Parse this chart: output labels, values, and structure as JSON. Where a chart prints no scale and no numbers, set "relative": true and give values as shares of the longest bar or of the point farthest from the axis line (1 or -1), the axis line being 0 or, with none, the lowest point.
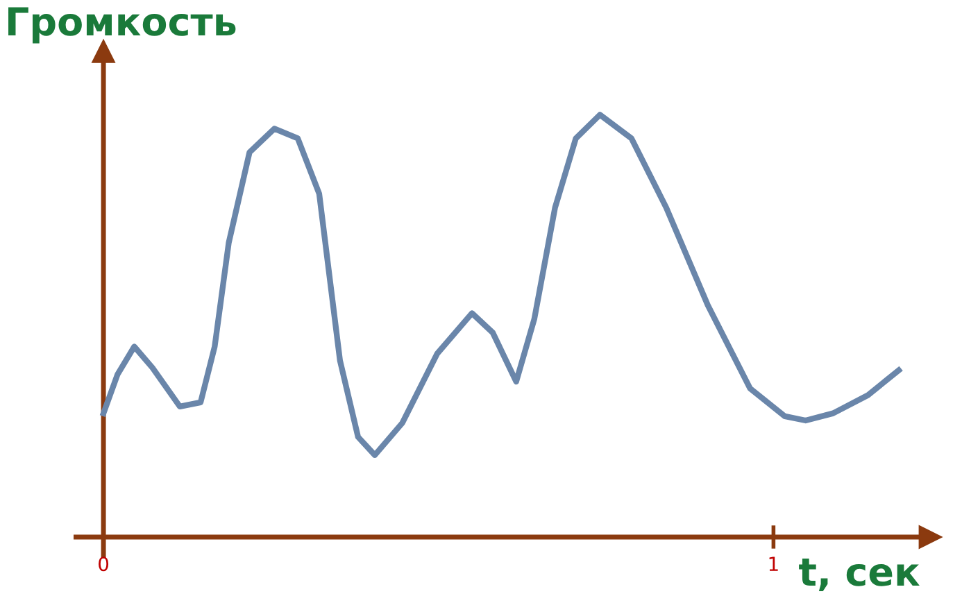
{
  "chart_data": {
    "type": "line",
    "ylabel": "Громкость",
    "xlabel": "t, сек",
    "relative": true,
    "ref_lines": [
      {
        "axis": "x",
        "value": 0,
        "color": "#8b3a0f"
      }
    ],
    "xlim": [
      -0.041,
      1.234
    ],
    "xticks": [
      0,
      1
    ],
    "grid": false,
    "marker": "none",
    "line_style": "solid",
    "series": [
      {
        "color": "#6a86aa",
        "x": [
          0,
          0.021,
          0.046,
          0.073,
          0.114,
          0.145,
          0.166,
          0.187,
          0.218,
          0.255,
          0.29,
          0.322,
          0.353,
          0.38,
          0.405,
          0.446,
          0.498,
          0.55,
          0.581,
          0.616,
          0.643,
          0.674,
          0.705,
          0.741,
          0.788,
          0.84,
          0.902,
          0.965,
          1.017,
          1.048,
          1.089,
          1.141,
          1.187
        ],
        "values": [
          0.293,
          0.385,
          0.451,
          0.401,
          0.309,
          0.319,
          0.451,
          0.697,
          0.911,
          0.967,
          0.944,
          0.813,
          0.418,
          0.237,
          0.194,
          0.27,
          0.434,
          0.53,
          0.484,
          0.368,
          0.516,
          0.78,
          0.944,
          1.0,
          0.944,
          0.78,
          0.549,
          0.352,
          0.286,
          0.276,
          0.293,
          0.336,
          0.395
        ]
      }
    ]
  }
}
